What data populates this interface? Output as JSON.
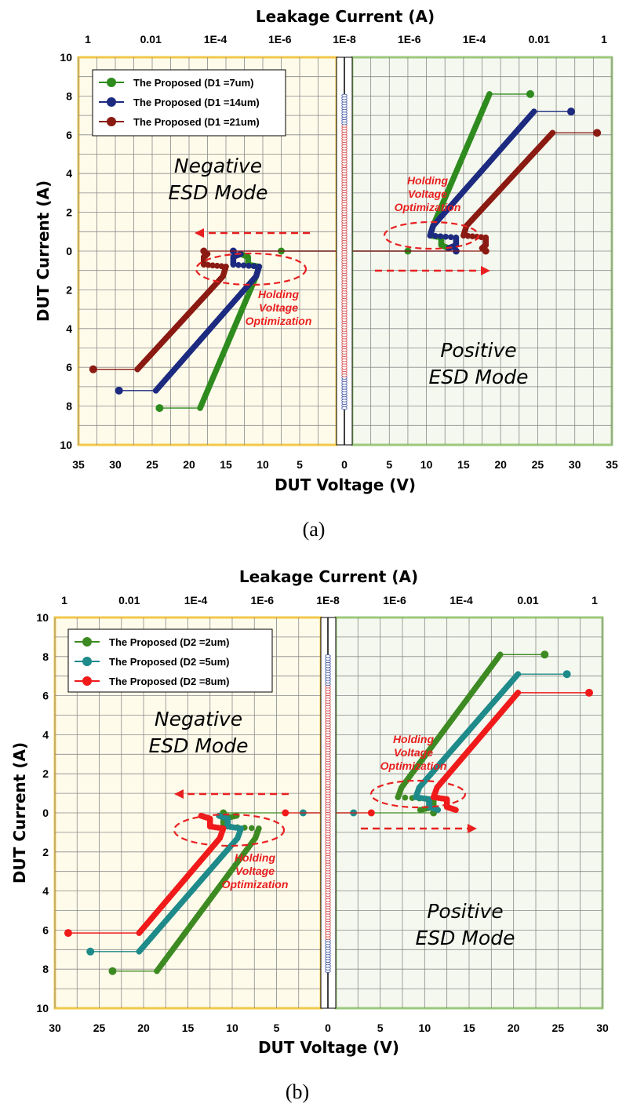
{
  "chart_data": [
    {
      "type": "scatter",
      "panel_label": "(a)",
      "top_axis_title": "Leakage Current (A)",
      "xlabel": "DUT Voltage (V)",
      "ylabel": "DUT Current (A)",
      "top_ticks_left": [
        "1",
        "0.01",
        "1E-4",
        "1E-6"
      ],
      "top_tick_center": "1E-8",
      "top_ticks_right": [
        "1E-6",
        "1E-4",
        "0.01",
        "1"
      ],
      "bottom_ticks_left": [
        "35",
        "30",
        "25",
        "20",
        "15",
        "10",
        "5"
      ],
      "bottom_tick_center": "0",
      "bottom_ticks_right": [
        "5",
        "10",
        "15",
        "20",
        "25",
        "30",
        "35"
      ],
      "y_ticks": [
        "10",
        "8",
        "6",
        "4",
        "2",
        "0",
        "2",
        "4",
        "6",
        "8",
        "10"
      ],
      "xlim_each_side": [
        0,
        35
      ],
      "ylim": [
        -10,
        10
      ],
      "grid": true,
      "legend_position": "top-left",
      "annotations": {
        "negative_mode": [
          "Negative",
          "ESD Mode"
        ],
        "positive_mode": [
          "Positive",
          "ESD Mode"
        ],
        "holding_left": [
          "Holding",
          "Voltage",
          "Optimization"
        ],
        "holding_right": [
          "Holding",
          "Voltage",
          "Optimization"
        ]
      },
      "series": [
        {
          "name": "The Proposed (D1 =7um)",
          "color": "#2e8b1e",
          "vt1": 7.5,
          "vh": 10.5,
          "it2": 8.1,
          "vt2": 18.5,
          "vfail": 24
        },
        {
          "name": "The Proposed (D1 =14um)",
          "color": "#1c2a80",
          "vt1": 14,
          "vh": 10.5,
          "it2": 7.2,
          "vt2": 24.5,
          "vfail": 29.5
        },
        {
          "name": "The Proposed (D1 =21um)",
          "color": "#8a1a12",
          "vt1": 18,
          "vh": 15,
          "it2": 6.1,
          "vt2": 27,
          "vfail": 33
        }
      ]
    },
    {
      "type": "scatter",
      "panel_label": "(b)",
      "top_axis_title": "Leakage Current (A)",
      "xlabel": "DUT Voltage (V)",
      "ylabel": "DUT Current (A)",
      "top_ticks_left": [
        "1",
        "0.01",
        "1E-4",
        "1E-6"
      ],
      "top_tick_center": "1E-8",
      "top_ticks_right": [
        "1E-6",
        "1E-4",
        "0.01",
        "1"
      ],
      "bottom_ticks_left": [
        "30",
        "25",
        "20",
        "15",
        "10",
        "5"
      ],
      "bottom_tick_center": "0",
      "bottom_ticks_right": [
        "5",
        "10",
        "15",
        "20",
        "25",
        "30"
      ],
      "y_ticks": [
        "10",
        "8",
        "6",
        "4",
        "2",
        "0",
        "2",
        "4",
        "6",
        "8",
        "10"
      ],
      "xlim_each_side": [
        0,
        30
      ],
      "ylim": [
        -10,
        10
      ],
      "grid": true,
      "legend_position": "top-left",
      "annotations": {
        "negative_mode": [
          "Negative",
          "ESD Mode"
        ],
        "positive_mode": [
          "Positive",
          "ESD Mode"
        ],
        "holding_left": [
          "Holding",
          "Voltage",
          "Optimization"
        ],
        "holding_right": [
          "Holding",
          "Voltage",
          "Optimization"
        ]
      },
      "series": [
        {
          "name": "The Proposed (D2 =2um)",
          "color": "#3d8a22",
          "vt1": 11,
          "vh": 7,
          "it2": 8.1,
          "vt2": 18.5,
          "vfail": 23.5
        },
        {
          "name": "The Proposed (D2 =5um)",
          "color": "#1e8a8a",
          "vt1": 2,
          "vh": 9,
          "it2": 7.1,
          "vt2": 20.5,
          "vfail": 26
        },
        {
          "name": "The Proposed (D2 =8um)",
          "color": "#f01a1a",
          "vt1": 4,
          "vh": 11,
          "it2": 6.15,
          "vt2": 20.5,
          "vfail": 28.5
        }
      ]
    }
  ]
}
